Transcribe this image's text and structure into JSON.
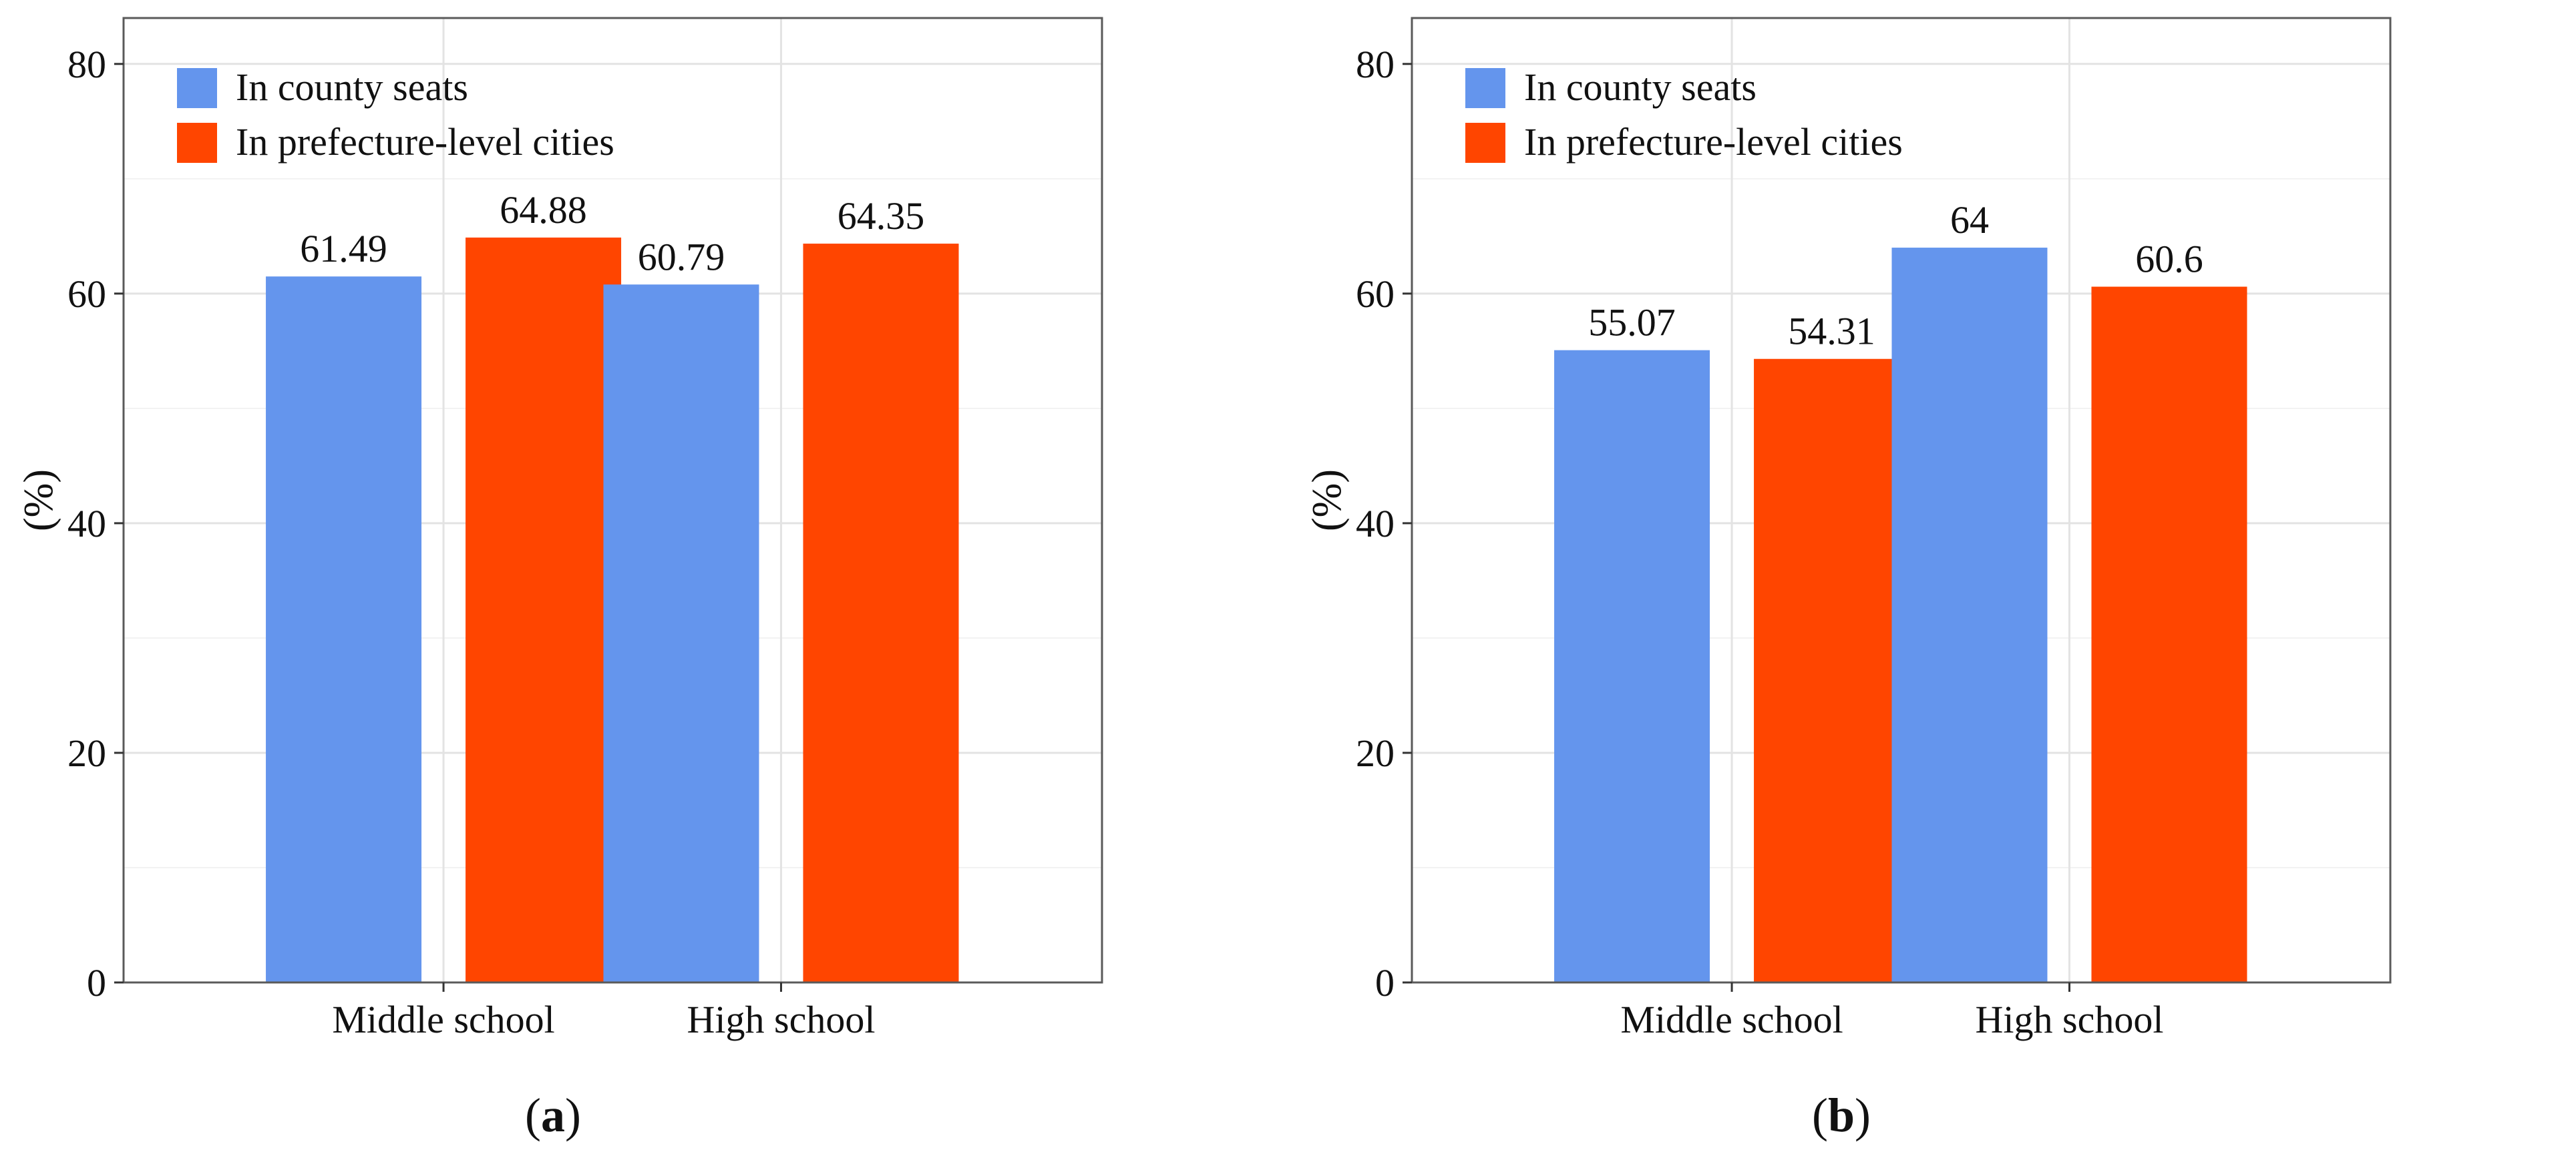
{
  "chart_data": [
    {
      "type": "bar",
      "panel": "(a)",
      "panel_letter": "a",
      "categories": [
        "Middle school",
        "High school"
      ],
      "series": [
        {
          "name": "In county seats",
          "color": "#6495ED",
          "values": [
            61.49,
            60.79
          ],
          "labels": [
            "61.49",
            "60.79"
          ]
        },
        {
          "name": "In prefecture-level cities",
          "color": "#FF4500",
          "values": [
            64.88,
            64.35
          ],
          "labels": [
            "64.88",
            "64.35"
          ]
        }
      ],
      "ylabel": "(%)",
      "xlabel": "",
      "ylim": [
        0,
        84
      ],
      "yticks": [
        0,
        20,
        40,
        60,
        80
      ],
      "legend_position": "top-left",
      "grid": true
    },
    {
      "type": "bar",
      "panel": "(b)",
      "panel_letter": "b",
      "categories": [
        "Middle school",
        "High school"
      ],
      "series": [
        {
          "name": "In county seats",
          "color": "#6495ED",
          "values": [
            55.07,
            64
          ],
          "labels": [
            "55.07",
            "64"
          ]
        },
        {
          "name": "In prefecture-level cities",
          "color": "#FF4500",
          "values": [
            54.31,
            60.6
          ],
          "labels": [
            "54.31",
            "60.6"
          ]
        }
      ],
      "ylabel": "(%)",
      "xlabel": "",
      "ylim": [
        0,
        84
      ],
      "yticks": [
        0,
        20,
        40,
        60,
        80
      ],
      "legend_position": "top-left",
      "grid": true
    }
  ]
}
